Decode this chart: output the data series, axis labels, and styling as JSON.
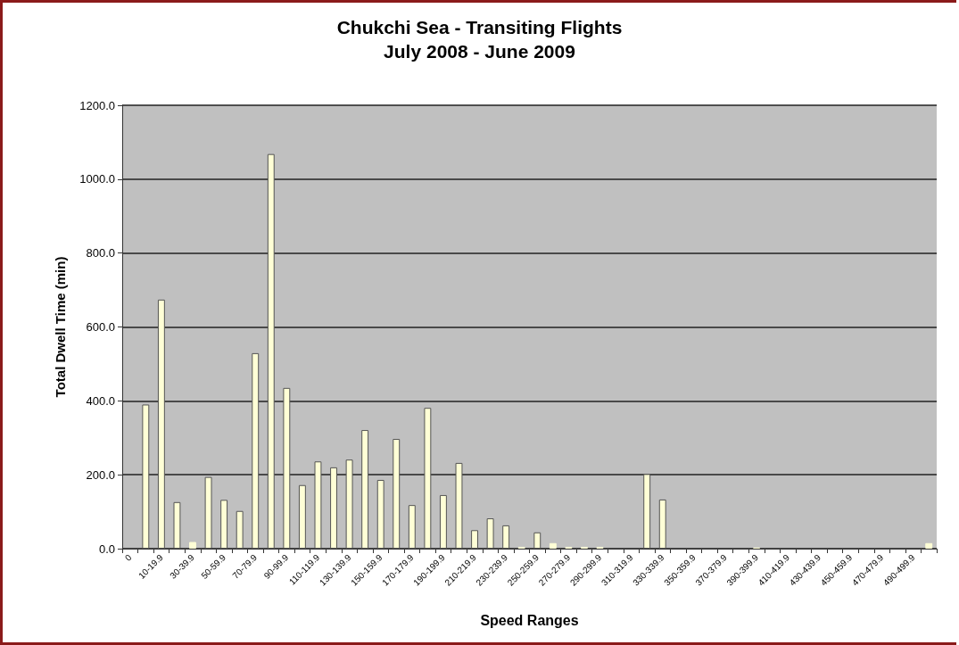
{
  "chart_data": {
    "type": "bar",
    "title": "Chukchi Sea - Transiting Flights",
    "subtitle": "July 2008 - June 2009",
    "xlabel": "Speed Ranges",
    "ylabel": "Total Dwell Time (min)",
    "categories": [
      "0",
      null,
      "10-19.9",
      null,
      "30-39.9",
      null,
      "50-59.9",
      null,
      "70-79.9",
      null,
      "90-99.9",
      null,
      "110-119.9",
      null,
      "130-139.9",
      null,
      "150-159.9",
      null,
      "170-179.9",
      null,
      "190-199.9",
      null,
      "210-219.9",
      null,
      "230-239.9",
      null,
      "250-259.9",
      null,
      "270-279.9",
      null,
      "290-299.9",
      null,
      "310-319.9",
      null,
      "330-339.9",
      null,
      "350-359.9",
      null,
      "370-379.9",
      null,
      "390-399.9",
      null,
      "410-419.9",
      null,
      "430-439.9",
      null,
      "450-459.9",
      null,
      "470-479.9",
      null,
      "490-499.9",
      null
    ],
    "values": [
      0,
      390,
      674,
      126,
      18,
      194,
      132,
      102,
      529,
      1068,
      435,
      172,
      236,
      220,
      241,
      321,
      186,
      297,
      118,
      381,
      145,
      232,
      50,
      82,
      63,
      5,
      44,
      15,
      5,
      5,
      5,
      0,
      0,
      202,
      133,
      0,
      0,
      0,
      0,
      0,
      3,
      0,
      0,
      0,
      0,
      0,
      0,
      0,
      0,
      0,
      0,
      15
    ],
    "color": "#ffffd6",
    "ylim": [
      0,
      1200
    ],
    "yticks": [
      {
        "value": 0,
        "label": "0.0"
      },
      {
        "value": 200,
        "label": "200.0"
      },
      {
        "value": 400,
        "label": "400.0"
      },
      {
        "value": 600,
        "label": "600.0"
      },
      {
        "value": 800,
        "label": "800.0"
      },
      {
        "value": 1000,
        "label": "1000.0"
      },
      {
        "value": 1200,
        "label": "1200.0"
      }
    ],
    "grid": "y"
  }
}
